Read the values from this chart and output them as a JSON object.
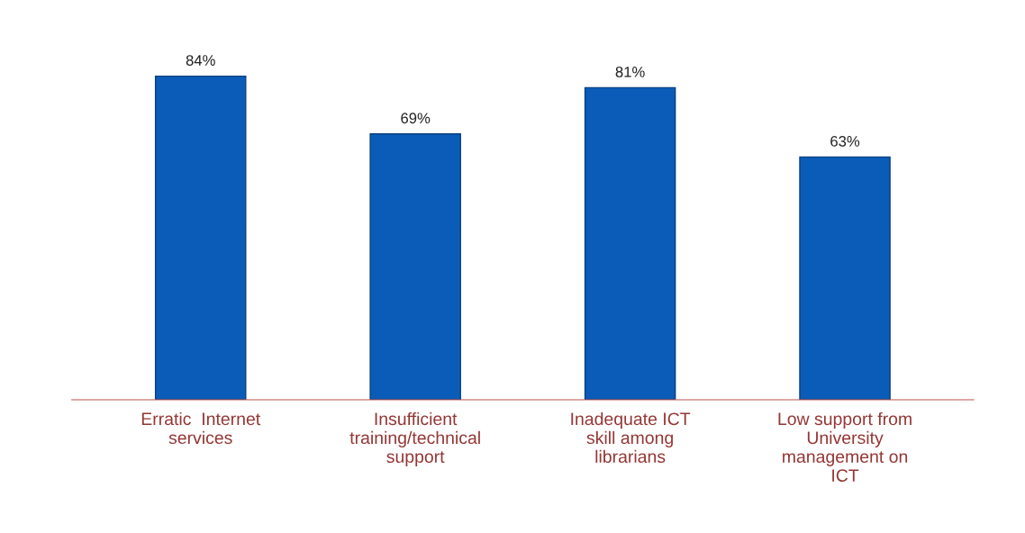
{
  "chart_data": {
    "type": "bar",
    "categories": [
      "Erratic  Internet\nservices",
      "Insufficient\ntraining/technical\nsupport",
      "Inadequate ICT\nskill among\nlibrarians",
      "Low support from\nUniversity\nmanagement on\nICT"
    ],
    "values": [
      84,
      69,
      81,
      63
    ],
    "value_labels": [
      "84%",
      "69%",
      "81%",
      "63%"
    ],
    "color": "#0b5cb8",
    "grid": false,
    "legend": false
  }
}
